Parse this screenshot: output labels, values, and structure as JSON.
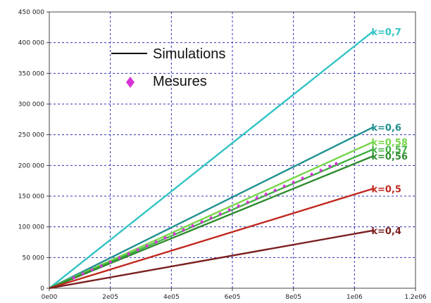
{
  "chart_data": {
    "type": "line",
    "title": "",
    "xlabel": "",
    "ylabel": "",
    "xlim": [
      0,
      1200000
    ],
    "ylim": [
      0,
      450000
    ],
    "grid": true,
    "legend_position": "top-center",
    "x_ticks": [
      {
        "value": 0,
        "label": "0e00"
      },
      {
        "value": 200000,
        "label": "2e05"
      },
      {
        "value": 400000,
        "label": "4e05"
      },
      {
        "value": 600000,
        "label": "6e05"
      },
      {
        "value": 800000,
        "label": "8e05"
      },
      {
        "value": 1000000,
        "label": "1e06"
      },
      {
        "value": 1200000,
        "label": "1.2e06"
      }
    ],
    "y_ticks": [
      {
        "value": 0,
        "label": "0"
      },
      {
        "value": 50000,
        "label": "50 000"
      },
      {
        "value": 100000,
        "label": "100 000"
      },
      {
        "value": 150000,
        "label": "150 000"
      },
      {
        "value": 200000,
        "label": "200 000"
      },
      {
        "value": 250000,
        "label": "250 000"
      },
      {
        "value": 300000,
        "label": "300 000"
      },
      {
        "value": 350000,
        "label": "350 000"
      },
      {
        "value": 400000,
        "label": "400 000"
      },
      {
        "value": 450000,
        "label": "450 000"
      }
    ],
    "legend": [
      {
        "label": "Simulations",
        "marker": "line",
        "color": "#000000"
      },
      {
        "label": "Mesures",
        "marker": "diamond",
        "color": "#d633d6"
      }
    ],
    "series": [
      {
        "name": "k=0,7",
        "color": "#33c4c4",
        "x": [
          0,
          1060000
        ],
        "y": [
          0,
          418000
        ]
      },
      {
        "name": "k=0,6",
        "color": "#1f8f8f",
        "x": [
          0,
          1060000
        ],
        "y": [
          0,
          262000
        ]
      },
      {
        "name": "k=0,58",
        "color": "#77d64a",
        "x": [
          0,
          1060000
        ],
        "y": [
          0,
          238000
        ]
      },
      {
        "name": "k=0,57",
        "color": "#3fb040",
        "x": [
          0,
          1060000
        ],
        "y": [
          0,
          226000
        ]
      },
      {
        "name": "k=0,56",
        "color": "#2e8b2e",
        "x": [
          0,
          1060000
        ],
        "y": [
          0,
          215000
        ]
      },
      {
        "name": "k=0,5",
        "color": "#c0281f",
        "x": [
          0,
          1060000
        ],
        "y": [
          0,
          162000
        ]
      },
      {
        "name": "k=0,4",
        "color": "#7a1f1f",
        "x": [
          0,
          1060000
        ],
        "y": [
          0,
          94000
        ]
      }
    ],
    "measurements": {
      "name": "Mesures",
      "color": "#d633d6",
      "x": [
        80000,
        110000,
        140000,
        170000,
        200000,
        230000,
        260000,
        290000,
        320000,
        350000,
        380000,
        410000,
        440000,
        470000,
        500000,
        530000,
        560000,
        590000,
        620000,
        650000,
        680000,
        710000,
        740000,
        770000,
        800000,
        830000,
        860000,
        890000,
        920000,
        940000
      ],
      "y": [
        17000,
        23500,
        30000,
        36500,
        43000,
        49500,
        56000,
        62500,
        69000,
        75500,
        82000,
        88500,
        95000,
        101500,
        108000,
        114500,
        121000,
        127500,
        134000,
        140000,
        146500,
        153000,
        159500,
        166000,
        172500,
        179000,
        185500,
        192000,
        198500,
        203000
      ]
    }
  }
}
